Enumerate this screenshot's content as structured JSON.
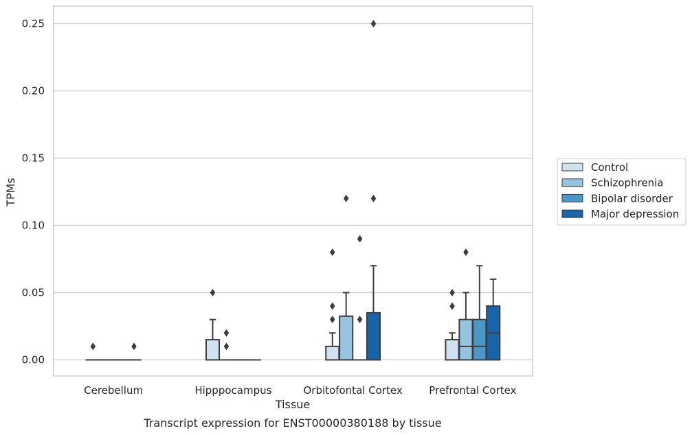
{
  "chart_data": {
    "type": "box",
    "caption": "Transcript expression for ENST00000380188 by tissue",
    "xlabel": "Tissue",
    "ylabel": "TPMs",
    "ylim": [
      -0.012,
      0.263
    ],
    "yticks": [
      0.0,
      0.05,
      0.1,
      0.15,
      0.2,
      0.25
    ],
    "ytick_labels": [
      "0.00",
      "0.05",
      "0.10",
      "0.15",
      "0.20",
      "0.25"
    ],
    "grid": true,
    "legend_position": "right",
    "categories": [
      "Cerebellum",
      "Hipppocampus",
      "Orbitofontal Cortex",
      "Prefrontal Cortex"
    ],
    "series": [
      {
        "name": "Control",
        "color": "#d0e1f2",
        "boxes": [
          {
            "q1": 0,
            "median": 0,
            "q3": 0,
            "whislo": 0,
            "whishi": 0,
            "fliers": [
              0.01
            ]
          },
          {
            "q1": 0,
            "median": 0,
            "q3": 0.015,
            "whislo": 0,
            "whishi": 0.03,
            "fliers": [
              0.05
            ]
          },
          {
            "q1": 0,
            "median": 0,
            "q3": 0.01,
            "whislo": 0,
            "whishi": 0.02,
            "fliers": [
              0.03,
              0.04,
              0.08
            ]
          },
          {
            "q1": 0,
            "median": 0,
            "q3": 0.015,
            "whislo": 0,
            "whishi": 0.02,
            "fliers": [
              0.04,
              0.05
            ]
          }
        ]
      },
      {
        "name": "Schizophrenia",
        "color": "#94c4df",
        "boxes": [
          {
            "q1": 0,
            "median": 0,
            "q3": 0,
            "whislo": 0,
            "whishi": 0,
            "fliers": []
          },
          {
            "q1": 0,
            "median": 0,
            "q3": 0,
            "whislo": 0,
            "whishi": 0,
            "fliers": [
              0.01,
              0.02
            ]
          },
          {
            "q1": 0,
            "median": 0,
            "q3": 0.0325,
            "whislo": 0,
            "whishi": 0.05,
            "fliers": [
              0.12
            ]
          },
          {
            "q1": 0,
            "median": 0.01,
            "q3": 0.03,
            "whislo": 0,
            "whishi": 0.05,
            "fliers": [
              0.08
            ]
          }
        ]
      },
      {
        "name": "Bipolar disorder",
        "color": "#4a98c9",
        "boxes": [
          {
            "q1": 0,
            "median": 0,
            "q3": 0,
            "whislo": 0,
            "whishi": 0,
            "fliers": []
          },
          {
            "q1": 0,
            "median": 0,
            "q3": 0,
            "whislo": 0,
            "whishi": 0,
            "fliers": []
          },
          {
            "q1": 0,
            "median": 0,
            "q3": 0,
            "whislo": 0,
            "whishi": 0,
            "fliers": [
              0.03,
              0.09
            ]
          },
          {
            "q1": 0,
            "median": 0.01,
            "q3": 0.03,
            "whislo": 0,
            "whishi": 0.07,
            "fliers": []
          }
        ]
      },
      {
        "name": "Major depression",
        "color": "#1764ab",
        "boxes": [
          {
            "q1": 0,
            "median": 0,
            "q3": 0,
            "whislo": 0,
            "whishi": 0,
            "fliers": [
              0.01
            ]
          },
          {
            "q1": 0,
            "median": 0,
            "q3": 0,
            "whislo": 0,
            "whishi": 0,
            "fliers": []
          },
          {
            "q1": 0,
            "median": 0,
            "q3": 0.035,
            "whislo": 0,
            "whishi": 0.07,
            "fliers": [
              0.12,
              0.25
            ]
          },
          {
            "q1": 0,
            "median": 0.02,
            "q3": 0.04,
            "whislo": 0,
            "whishi": 0.06,
            "fliers": []
          }
        ]
      }
    ]
  }
}
